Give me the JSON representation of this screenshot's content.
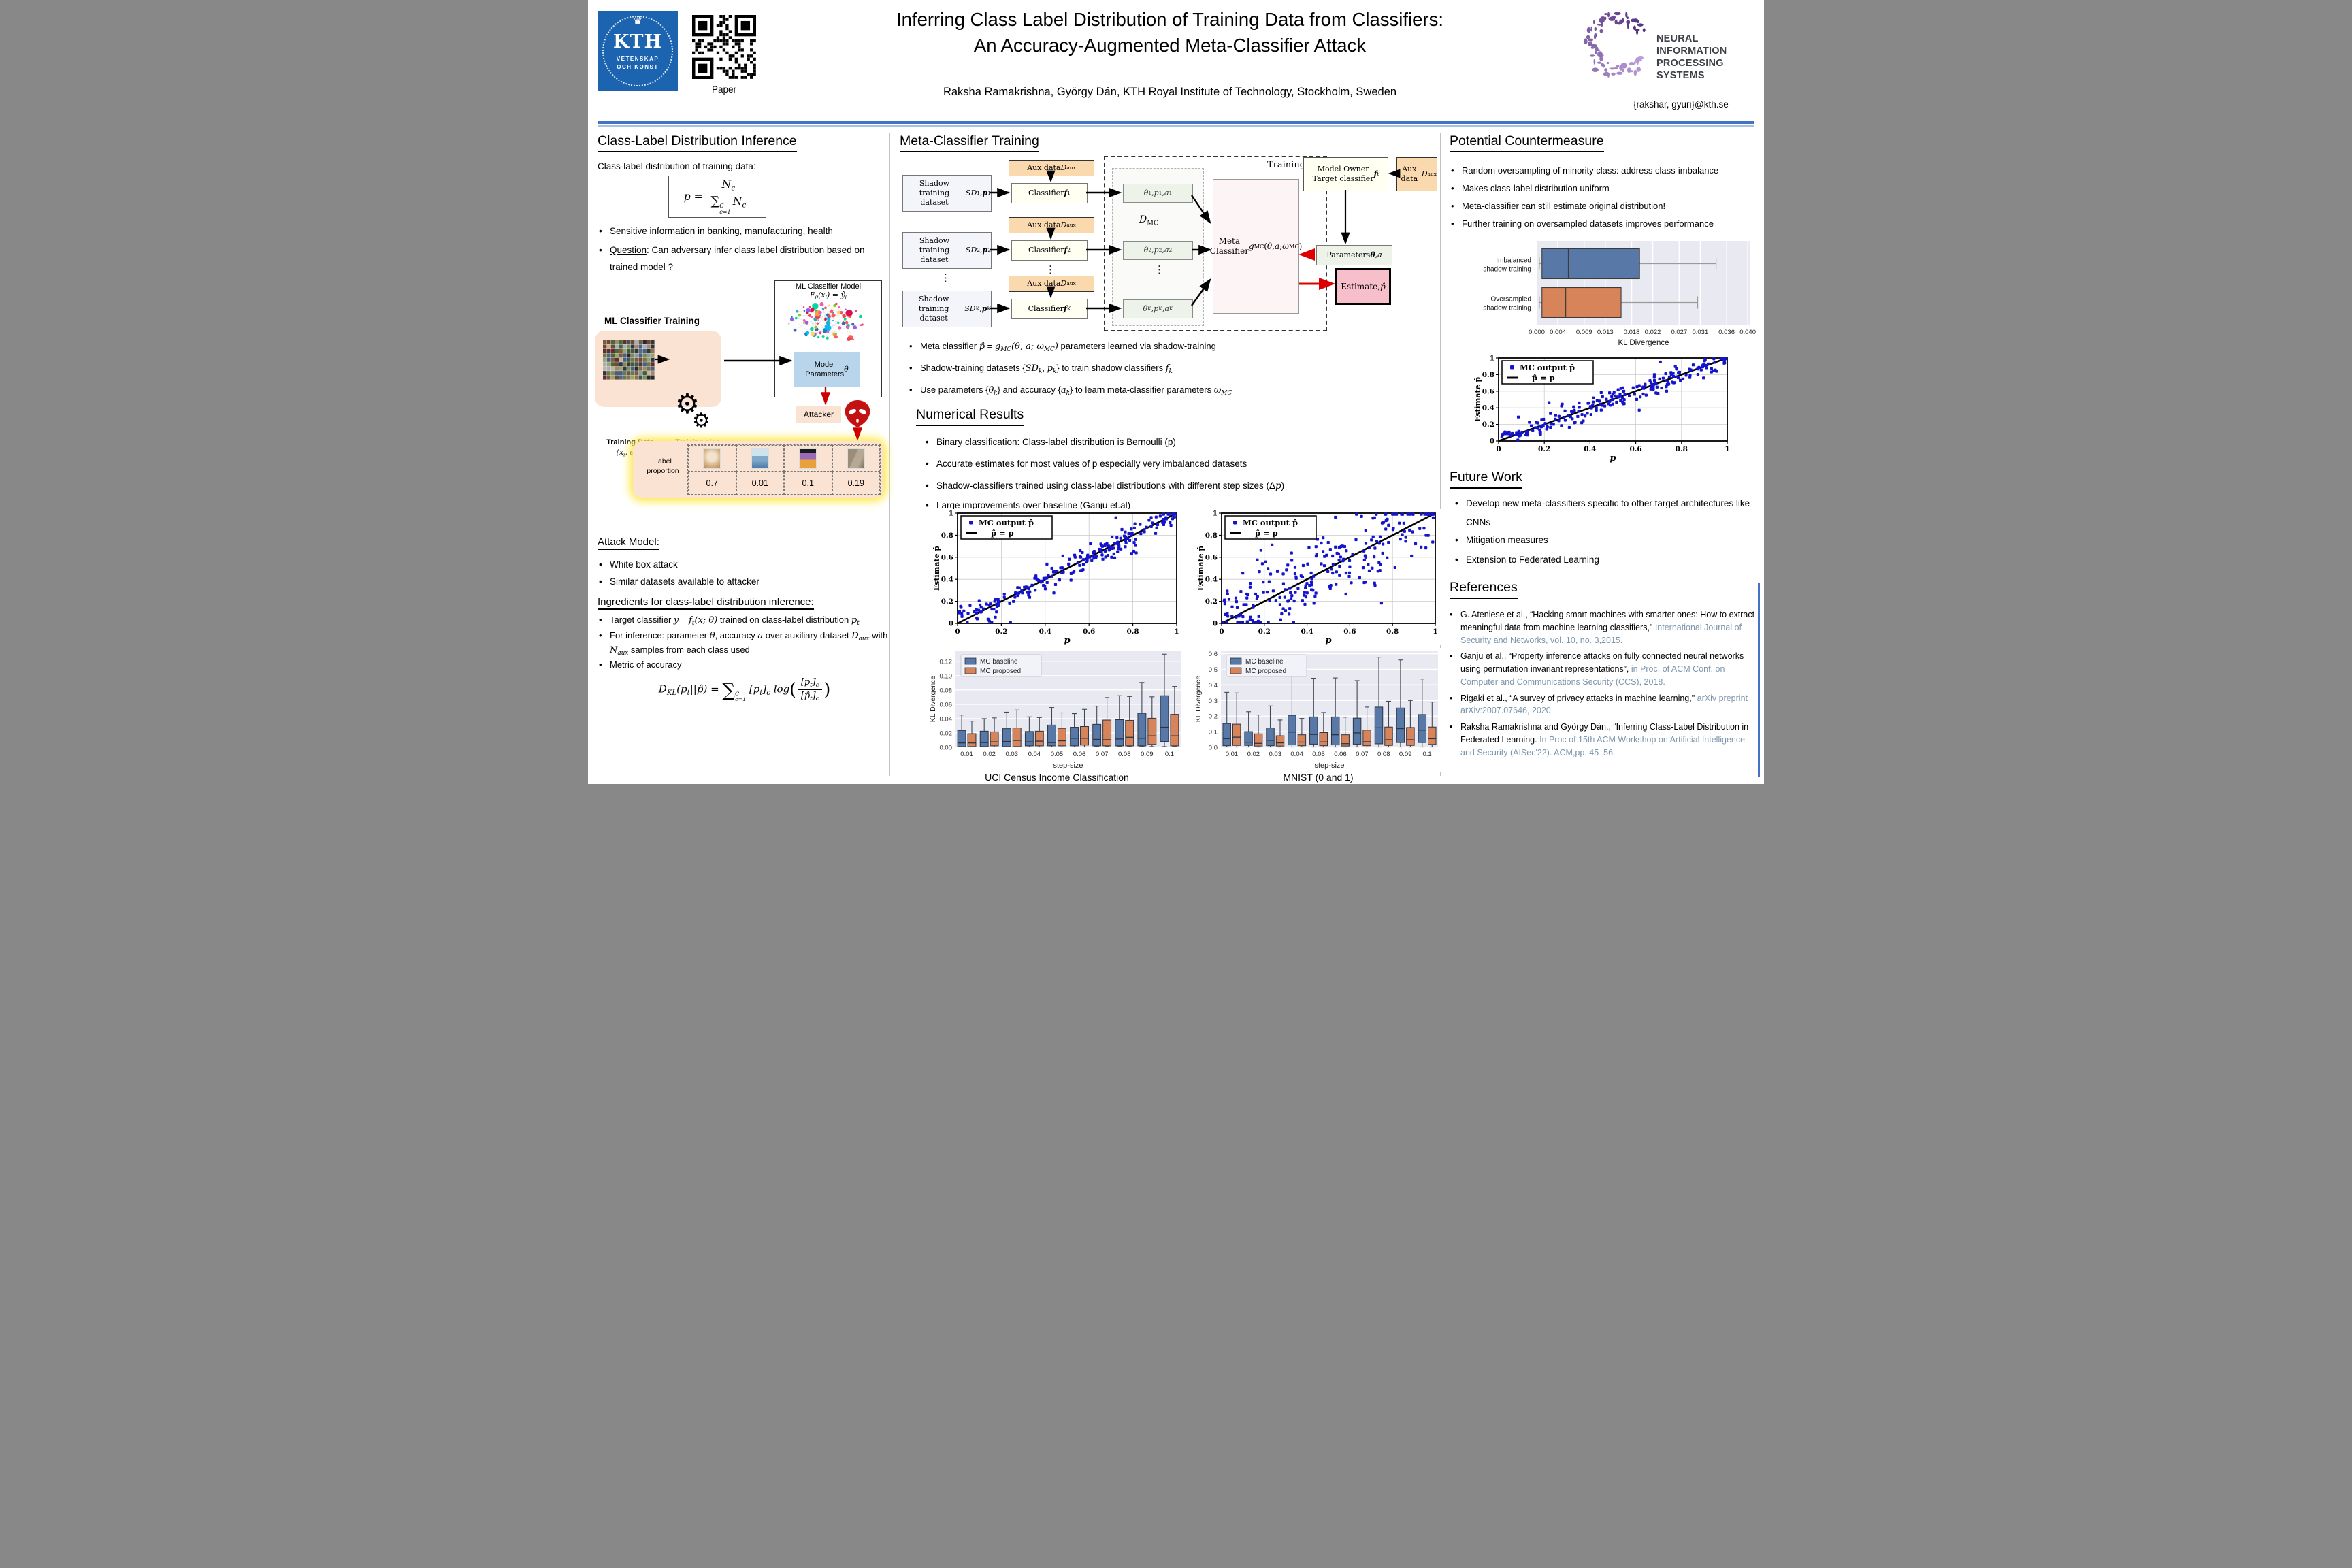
{
  "colors": {
    "kth_blue": "#1c64b0",
    "rule_blue": "#4472c4",
    "baseline_blue": "#5878a8",
    "proposed_orange": "#d8845a",
    "scatter_point": "#1414cc",
    "ref_blue": "#7d95ab"
  },
  "header": {
    "title_line1": "Inferring Class Label Distribution of Training Data from Classifiers:",
    "title_line2": "An Accuracy-Augmented Meta-Classifier Attack",
    "authors": "Raksha Ramakrishna, György Dán,  KTH Royal Institute of Technology, Stockholm, Sweden",
    "email": "{rakshar, gyuri}@kth.se",
    "qr_label": "Paper",
    "kth": {
      "name": "KTH",
      "motto1": "VETENSKAP",
      "motto2": "OCH KONST"
    },
    "neurips": {
      "line1": "NEURAL INFORMATION",
      "line2": "PROCESSING SYSTEMS"
    }
  },
  "left": {
    "heading": "Class-Label Distribution Inference",
    "intro": "Class-label distribution of training data:",
    "formula_p_html": "<i>p</i>&nbsp;=&nbsp;<span class='frac'><span class='top'><i>N</i><sub>c</sub></span><span class='bot'><span class='sum2'>∑</span><span class='ss'><span>C</span><span>c=1</span></span>&thinsp;<i>N</i><sub>c</sub></span></span>",
    "bullet1": "Sensitive information in banking, manufacturing, health",
    "bullet2_html": "<u>Question</u>: Can adversary infer class label distribution based on trained model ?",
    "model_box": {
      "title": "ML Classifier Model",
      "formula_html": "<span class='m'>F<sub>θ</sub>(x<sub>i</sub>) = ŷ<sub>i</sub></span>"
    },
    "training_label": "ML Classifier Training",
    "training_data_label": "Training Data",
    "training_data_formula_html": "<span class='m'>(x<sub>i</sub>, e<sub>i</sub>)</span><span class='ss'><span>N</span><span>i=1</span></span>",
    "training_algo_label": "Training algo",
    "model_params_html": "Model<br>Parameters<br><span class='m'>θ</span>",
    "attacker_label": "Attacker",
    "label_table": {
      "row_label": "Label proportion",
      "values": [
        "0.7",
        "0.01",
        "0.1",
        "0.19"
      ]
    },
    "attack_model": {
      "heading": "Attack Model:",
      "bullets": [
        "White box attack",
        "Similar datasets available to attacker"
      ]
    },
    "ingredients": {
      "heading": "Ingredients for class-label distribution inference:",
      "b1_html": "Target classifier <span class='m'>y</span> = <span class='m'>f<sub>t</sub>(x; θ)</span> trained on class-label distribution <span class='m'>p<sub>t</sub></span>",
      "b2_html": "For inference: parameter <span class='m'>θ</span>, accuracy <span class='m'>a</span> over auxiliary dataset <span class='m'>D<sub>aux</sub></span> with <span class='m'>N<sub>aux</sub></span> samples from each class used",
      "b3": "Metric of accuracy"
    },
    "kl_formula_html": "D<sub>KL</sub>(p<sub>t</sub>||p̂) = <span class='sum2' style='font-size:175%;vertical-align:-18%'>∑</span><span class='ss'><span>C</span><span>c=1</span></span> [p<sub>t</sub>]<sub>c</sub> log<span class='bigp'>(</span><span class='frac' style='font-size:86%'><span class='top'>[p<sub>t</sub>]<sub>c</sub></span><span class='bot'>[p̂<sub>t</sub>]<sub>c</sub></span></span><span class='bigp'>)</span>"
  },
  "middle": {
    "heading": "Meta-Classifier Training",
    "diagram": {
      "aux_html": "Aux data <i>D</i><sub>aux</sub>",
      "aux_right_html": "Aux data<br><i>D</i><sub>aux</sub>",
      "rows": [
        {
          "shadow_html": "Shadow training<br>dataset <i>SD</i><sub>1</sub>, <b><i>p</i></b><sub>1</sub>",
          "cls_html": "Classifier <b><i>f</i></b><sub>1</sub>",
          "theta_html": "<i>θ</i><sub>1</sub>, <i>p</i><sub>1</sub>, <i>a</i><sub>1</sub>"
        },
        {
          "shadow_html": "Shadow training<br>dataset <i>SD</i><sub>2</sub>, <b><i>p</i></b><sub>2</sub>",
          "cls_html": "Classifier <b><i>f</i></b><sub>2</sub>",
          "theta_html": "<i>θ</i><sub>2</sub>, <i>p</i><sub>2</sub>, <i>a</i><sub>2</sub>"
        },
        {
          "shadow_html": "Shadow training<br>dataset <i>SD</i><sub>K</sub>, <b><i>p</i></b><sub>K</sub>",
          "cls_html": "Classifier <b><i>f</i></b><sub>K</sub>",
          "theta_html": "<i>θ</i><sub>K</sub>, <i>p</i><sub>K</sub>, <i>a</i><sub>K</sub>"
        }
      ],
      "dmc_html": "<i>D</i><sub>MC</sub>",
      "training_label": "Training",
      "meta_html": "Meta Classifier<br><i>g</i><sub>MC</sub>(<i>θ</i>, <i>a</i>; <i>ω</i><sub>MC</sub>)",
      "owner_html": "Model Owner<br>Target classifier <b><i>f</i></b><sub>t</sub>",
      "params_html": "Parameters <b><i>θ</i></b>, <i>a</i>",
      "estimate_html": "Estimate,<br><i>p̂</i>"
    },
    "bullets_html": [
      "Meta classifier <span class='m'>p̂</span> = <span class='m'>g<sub>MC</sub>(θ, a; ω<sub>MC</sub>)</span> parameters learned via shadow-training",
      "Shadow-training datasets {<span class='m'>SD<sub>k</sub></span>, <span class='m'>p<sub>k</sub></span>} to train shadow classifiers <span class='m'>f<sub>k</sub></span>",
      "Use parameters {<span class='m'>θ<sub>k</sub></span>} and accuracy {<span class='m'>a<sub>k</sub></span>} to learn meta-classifier parameters <span class='m'>ω<sub>MC</sub></span>"
    ],
    "numerical_heading": "Numerical Results",
    "numerical_bullets_html": [
      "Binary classification: Class-label distribution is Bernoulli (p)",
      "Accurate estimates for most values of p especially very imbalanced datasets",
      "Shadow-classifiers trained using class-label distributions with different step sizes (Δ<span class='m'>p</span>)",
      "Large improvements over baseline (Ganju et.al)"
    ],
    "captions": [
      "UCI Census Income Classification",
      "MNIST (0 and 1)"
    ]
  },
  "right": {
    "heading": "Potential Countermeasure",
    "bullets": [
      "Random oversampling of minority class: address class-imbalance",
      "Makes class-label distribution uniform",
      "Meta-classifier can still estimate original distribution!",
      "Further training on oversampled datasets improves performance"
    ],
    "future": {
      "heading": "Future Work",
      "b1": "Develop new meta-classifiers specific to other target architectures like CNNs",
      "b2": "Mitigation measures",
      "b3": "Extension to Federated Learning"
    },
    "references": {
      "heading": "References",
      "items": [
        {
          "black": "G. Ateniese et al., “Hacking smart machines with smarter ones: How to extract meaningful data from machine learning classifiers,\" ",
          "blue": "International Journal of Security and Networks, vol. 10, no. 3,2015."
        },
        {
          "black": "Ganju et al., “Property inference attacks on fully connected neural networks using permutation invariant representations”, ",
          "blue": "in Proc. of ACM Conf. on Computer and Communications Security (CCS), 2018."
        },
        {
          "black": "Rigaki et al., “A survey of privacy attacks in machine learning,\" ",
          "blue": "arXiv preprint arXiv:2007.07646, 2020."
        },
        {
          "black": "Raksha Ramakrishna and György Dán., “Inferring Class-Label Distribution in Federated Learning. ",
          "blue": "In Proc of 15th ACM Workshop on Artificial Intelligence and Security (AISec'22). ACM,pp. 45–56."
        }
      ]
    }
  },
  "chart_data": [
    {
      "type": "scatter",
      "name": "UCI scatter",
      "xlabel": "p",
      "ylabel": "Estimate p̂",
      "legend_dot": "MC output p̂",
      "legend_line": "p̂ = p",
      "xlim": [
        0,
        1
      ],
      "ylim": [
        0,
        1
      ],
      "ticks": [
        0,
        0.2,
        0.4,
        0.6,
        0.8,
        1
      ],
      "tick_labels": [
        "0",
        "0.2",
        "0.4",
        "0.6",
        "0.8",
        "1"
      ],
      "n": 230,
      "noise": 0.055,
      "seed": 7,
      "low_lift": true,
      "point_color": "#1414cc",
      "identity_line": true
    },
    {
      "type": "scatter",
      "name": "MNIST scatter",
      "xlabel": "p",
      "ylabel": "Estimate p̂",
      "legend_dot": "MC output p̂",
      "legend_line": "p̂ = p",
      "xlim": [
        0,
        1
      ],
      "ylim": [
        0,
        1
      ],
      "ticks": [
        0,
        0.2,
        0.4,
        0.6,
        0.8,
        1
      ],
      "tick_labels": [
        "0",
        "0.2",
        "0.4",
        "0.6",
        "0.8",
        "1"
      ],
      "n": 260,
      "noise": 0.19,
      "seed": 11,
      "low_lift": false,
      "point_color": "#1414cc",
      "identity_line": true
    },
    {
      "type": "box",
      "name": "UCI KL divergence vs step-size",
      "xlabel": "step-size",
      "ylabel": "KL Divergence",
      "categories": [
        "0.01",
        "0.02",
        "0.03",
        "0.04",
        "0.05",
        "0.06",
        "0.07",
        "0.08",
        "0.09",
        "0.1"
      ],
      "ylim": [
        0,
        0.135
      ],
      "yticks": [
        0,
        0.02,
        0.04,
        0.06,
        0.08,
        0.1,
        0.12
      ],
      "ytick_labels": [
        "0.00",
        "0.02",
        "0.04",
        "0.06",
        "0.08",
        "0.10",
        "0.12"
      ],
      "series": [
        {
          "name": "MC baseline",
          "color": "#5878a8",
          "boxes": [
            [
              0.0005,
              0.001,
              0.006,
              0.0235,
              0.045
            ],
            [
              0.0005,
              0.001,
              0.0065,
              0.0225,
              0.04
            ],
            [
              0.0005,
              0.001,
              0.008,
              0.026,
              0.049
            ],
            [
              0.0005,
              0.002,
              0.0075,
              0.022,
              0.0425
            ],
            [
              0.0005,
              0.002,
              0.0065,
              0.031,
              0.0555
            ],
            [
              0.0005,
              0.002,
              0.0125,
              0.028,
              0.047
            ],
            [
              0.001,
              0.002,
              0.011,
              0.032,
              0.0575
            ],
            [
              0.001,
              0.002,
              0.0115,
              0.0385,
              0.072
            ],
            [
              0.001,
              0.002,
              0.0125,
              0.0475,
              0.0905
            ],
            [
              0.001,
              0.008,
              0.028,
              0.072,
              0.13
            ]
          ]
        },
        {
          "name": "MC proposed",
          "color": "#d8845a",
          "boxes": [
            [
              0.0005,
              0.001,
              0.006,
              0.019,
              0.0365
            ],
            [
              0.0005,
              0.002,
              0.0075,
              0.0215,
              0.041
            ],
            [
              0.0005,
              0.001,
              0.0095,
              0.027,
              0.052
            ],
            [
              0.0005,
              0.002,
              0.0085,
              0.0225,
              0.0415
            ],
            [
              0.0005,
              0.002,
              0.009,
              0.0265,
              0.048
            ],
            [
              0.0005,
              0.003,
              0.0125,
              0.029,
              0.053
            ],
            [
              0.001,
              0.002,
              0.0105,
              0.038,
              0.0695
            ],
            [
              0.001,
              0.002,
              0.014,
              0.0375,
              0.071
            ],
            [
              0.001,
              0.004,
              0.016,
              0.0405,
              0.0705
            ],
            [
              0.001,
              0.002,
              0.016,
              0.046,
              0.085
            ]
          ]
        }
      ]
    },
    {
      "type": "box",
      "name": "MNIST KL divergence vs step-size",
      "xlabel": "step-size",
      "ylabel": "KL Divergence",
      "categories": [
        "0.01",
        "0.02",
        "0.03",
        "0.04",
        "0.05",
        "0.06",
        "0.07",
        "0.08",
        "0.09",
        "0.1"
      ],
      "ylim": [
        0,
        0.62
      ],
      "yticks": [
        0,
        0.1,
        0.2,
        0.3,
        0.4,
        0.5,
        0.6
      ],
      "ytick_labels": [
        "0.0",
        "0.1",
        "0.2",
        "0.3",
        "0.4",
        "0.5",
        "0.6"
      ],
      "series": [
        {
          "name": "MC baseline",
          "color": "#5878a8",
          "boxes": [
            [
              0.002,
              0.01,
              0.055,
              0.152,
              0.352
            ],
            [
              0.002,
              0.012,
              0.032,
              0.1,
              0.228
            ],
            [
              0.002,
              0.01,
              0.044,
              0.124,
              0.265
            ],
            [
              0.002,
              0.015,
              0.097,
              0.205,
              0.465
            ],
            [
              0.002,
              0.02,
              0.082,
              0.195,
              0.443
            ],
            [
              0.002,
              0.015,
              0.08,
              0.195,
              0.445
            ],
            [
              0.002,
              0.02,
              0.092,
              0.187,
              0.428
            ],
            [
              0.002,
              0.022,
              0.125,
              0.258,
              0.578
            ],
            [
              0.002,
              0.03,
              0.12,
              0.252,
              0.56
            ],
            [
              0.002,
              0.03,
              0.11,
              0.21,
              0.438
            ]
          ]
        },
        {
          "name": "MC proposed",
          "color": "#d8845a",
          "boxes": [
            [
              0.002,
              0.012,
              0.065,
              0.148,
              0.348
            ],
            [
              0.002,
              0.008,
              0.025,
              0.086,
              0.207
            ],
            [
              0.002,
              0.008,
              0.028,
              0.074,
              0.175
            ],
            [
              0.002,
              0.01,
              0.033,
              0.08,
              0.185
            ],
            [
              0.002,
              0.01,
              0.034,
              0.094,
              0.223
            ],
            [
              0.002,
              0.008,
              0.023,
              0.08,
              0.193
            ],
            [
              0.002,
              0.01,
              0.035,
              0.11,
              0.258
            ],
            [
              0.002,
              0.012,
              0.048,
              0.13,
              0.295
            ],
            [
              0.002,
              0.012,
              0.048,
              0.127,
              0.3
            ],
            [
              0.002,
              0.018,
              0.055,
              0.13,
              0.29
            ]
          ]
        }
      ]
    },
    {
      "type": "hbox",
      "name": "Countermeasure KL divergence",
      "xlabel": "KL Divergence",
      "categories": [
        [
          "Imbalanced",
          "shadow-training"
        ],
        [
          "Oversampled",
          "shadow-training"
        ]
      ],
      "colors": [
        "#5878a8",
        "#d8845a"
      ],
      "xlim": [
        0,
        0.0405
      ],
      "xticks": [
        0,
        0.004,
        0.009,
        0.013,
        0.018,
        0.022,
        0.027,
        0.031,
        0.036,
        0.04
      ],
      "xtick_labels": [
        "0.000",
        "0.004",
        "0.009",
        "0.013",
        "0.018",
        "0.022",
        "0.027",
        "0.031",
        "0.036",
        "0.040"
      ],
      "boxes": [
        [
          0.0005,
          0.001,
          0.006,
          0.0195,
          0.034
        ],
        [
          0.0005,
          0.001,
          0.0055,
          0.016,
          0.0305
        ]
      ]
    },
    {
      "type": "scatter",
      "name": "Countermeasure scatter",
      "xlabel": "p",
      "ylabel": "Estimate p̂",
      "legend_dot": "MC output p̂",
      "legend_line": "p̂ = p",
      "xlim": [
        0,
        1
      ],
      "ylim": [
        0,
        1
      ],
      "ticks": [
        0,
        0.2,
        0.4,
        0.6,
        0.8,
        1
      ],
      "tick_labels": [
        "0",
        "0.2",
        "0.4",
        "0.6",
        "0.8",
        "1"
      ],
      "n": 230,
      "noise": 0.06,
      "seed": 29,
      "low_lift": true,
      "point_color": "#1414cc",
      "identity_line": true
    }
  ]
}
